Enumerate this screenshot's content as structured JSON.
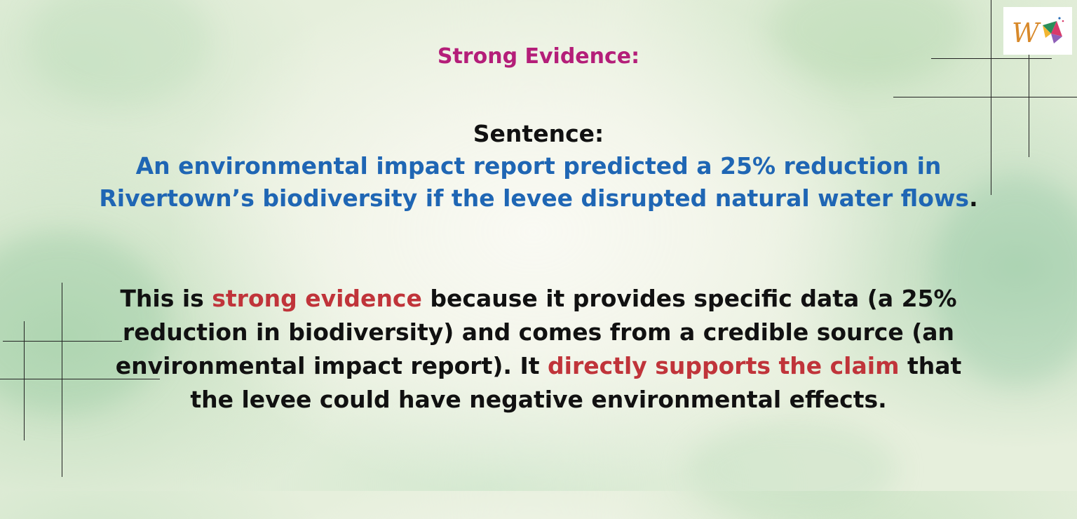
{
  "heading": "Strong Evidence:",
  "sentence_label": "Sentence:",
  "sentence": {
    "text": "An environmental impact report predicted a 25% reduction in Rivertown’s biodiversity if the levee disrupted natural water flows",
    "period": "."
  },
  "explanation": {
    "part1": "This is ",
    "highlight1": "strong evidence",
    "part2": " because it provides specific data (a 25% reduction in biodiversity) and comes from a credible source (an environmental impact report). It ",
    "highlight2": "directly supports the claim",
    "part3": " that the levee could have negative environmental effects."
  },
  "logo": {
    "letter": "W"
  },
  "colors": {
    "heading": "#b41e79",
    "sentence": "#1f66b4",
    "highlight": "#c0343a",
    "body": "#111111"
  }
}
